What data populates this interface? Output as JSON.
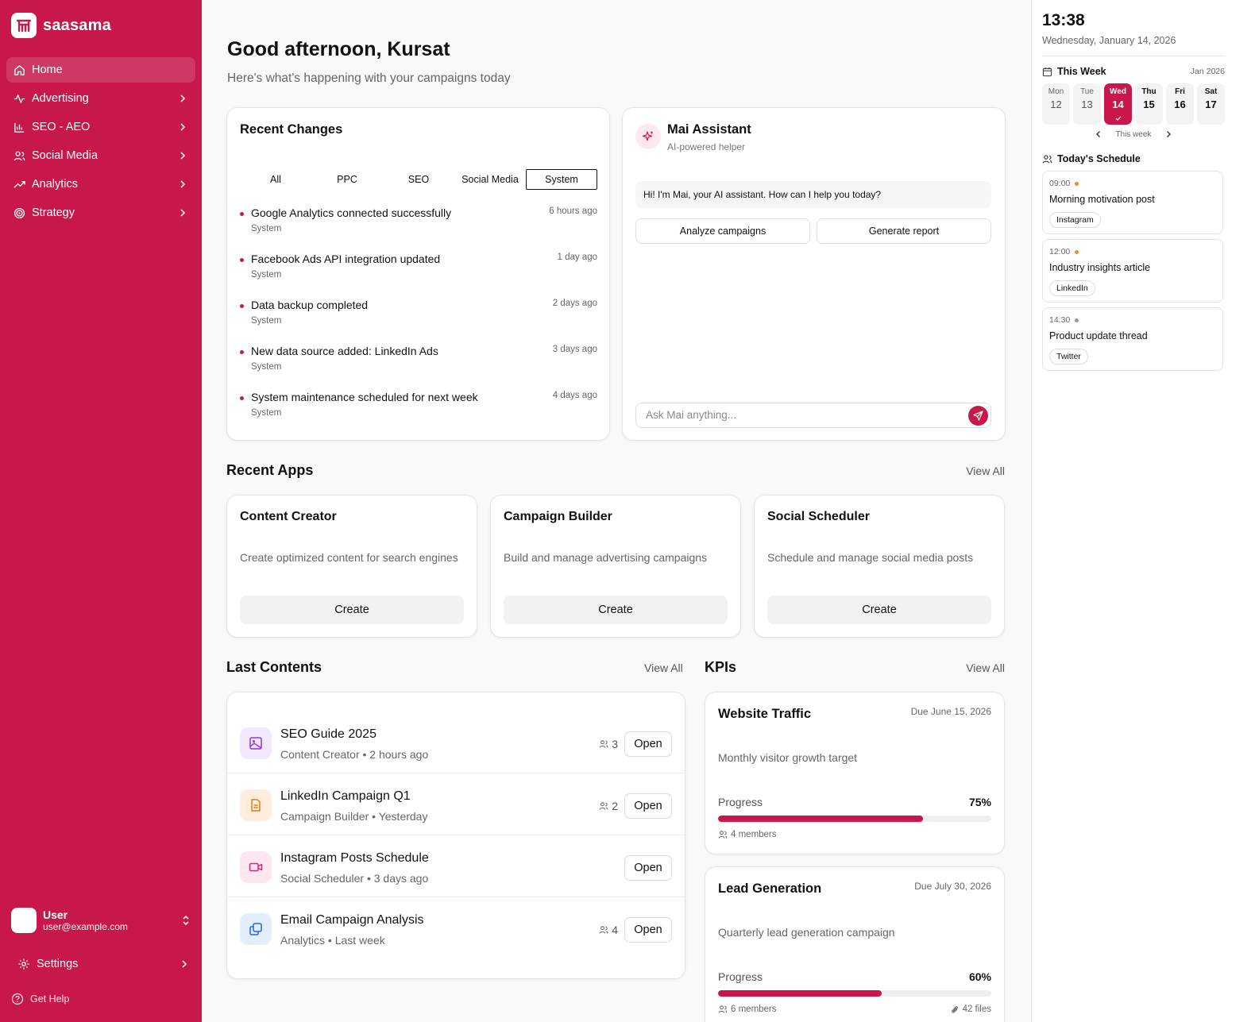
{
  "app": {
    "brand": "saasama"
  },
  "sidebar": {
    "items": [
      {
        "label": "Home",
        "icon": "home-icon"
      },
      {
        "label": "Advertising",
        "icon": "activity-icon"
      },
      {
        "label": "SEO - AEO",
        "icon": "bar-chart-icon"
      },
      {
        "label": "Social Media",
        "icon": "users-icon"
      },
      {
        "label": "Analytics",
        "icon": "trend-icon"
      },
      {
        "label": "Strategy",
        "icon": "target-icon"
      }
    ],
    "user": {
      "name": "User",
      "email": "user@example.com"
    },
    "settings_label": "Settings",
    "help_label": "Get Help"
  },
  "header": {
    "greeting": "Good afternoon, Kursat",
    "subtitle": "Here's what's happening with your campaigns today"
  },
  "recent_changes": {
    "title": "Recent Changes",
    "tabs": [
      "All",
      "PPC",
      "SEO",
      "Social Media",
      "System"
    ],
    "active_tab": "System",
    "items": [
      {
        "title": "Google Analytics connected successfully",
        "category": "System",
        "time": "6 hours ago"
      },
      {
        "title": "Facebook Ads API integration updated",
        "category": "System",
        "time": "1 day ago"
      },
      {
        "title": "Data backup completed",
        "category": "System",
        "time": "2 days ago"
      },
      {
        "title": "New data source added: LinkedIn Ads",
        "category": "System",
        "time": "3 days ago"
      },
      {
        "title": "System maintenance scheduled for next week",
        "category": "System",
        "time": "4 days ago"
      }
    ]
  },
  "assistant": {
    "title": "Mai Assistant",
    "subtitle": "AI-powered helper",
    "message": "Hi! I'm Mai, your AI assistant. How can I help you today?",
    "actions": [
      "Analyze campaigns",
      "Generate report"
    ],
    "input_placeholder": "Ask Mai anything..."
  },
  "recent_apps": {
    "title": "Recent Apps",
    "view_all": "View All",
    "apps": [
      {
        "title": "Content Creator",
        "description": "Create optimized content for search engines",
        "button": "Create"
      },
      {
        "title": "Campaign Builder",
        "description": "Build and manage advertising campaigns",
        "button": "Create"
      },
      {
        "title": "Social Scheduler",
        "description": "Schedule and manage social media posts",
        "button": "Create"
      }
    ]
  },
  "last_contents": {
    "title": "Last Contents",
    "view_all": "View All",
    "items": [
      {
        "title": "SEO Guide 2025",
        "meta": "Content Creator • 2 hours ago",
        "members": "3",
        "button": "Open",
        "icon": "image-icon",
        "color": "#9333ea"
      },
      {
        "title": "LinkedIn Campaign Q1",
        "meta": "Campaign Builder • Yesterday",
        "members": "2",
        "button": "Open",
        "icon": "document-icon",
        "color": "#ea7a1a"
      },
      {
        "title": "Instagram Posts Schedule",
        "meta": "Social Scheduler • 3 days ago",
        "members": "",
        "button": "Open",
        "icon": "video-icon",
        "color": "#db2777"
      },
      {
        "title": "Email Campaign Analysis",
        "meta": "Analytics • Last week",
        "members": "4",
        "button": "Open",
        "icon": "files-icon",
        "color": "#2563eb"
      }
    ]
  },
  "kpis": {
    "title": "KPIs",
    "view_all": "View All",
    "items": [
      {
        "title": "Website Traffic",
        "due": "Due June 15, 2026",
        "description": "Monthly visitor growth target",
        "progress_label": "Progress",
        "progress": "75%",
        "progress_value": 75,
        "members": "4 members",
        "files": ""
      },
      {
        "title": "Lead Generation",
        "due": "Due July 30, 2026",
        "description": "Quarterly lead generation campaign",
        "progress_label": "Progress",
        "progress": "60%",
        "progress_value": 60,
        "members": "6 members",
        "files": "42 files"
      }
    ]
  },
  "right_panel": {
    "time": "13:38",
    "date": "Wednesday, January 14, 2026",
    "week_title": "This Week",
    "month": "Jan 2026",
    "days": [
      {
        "name": "Mon",
        "num": "12"
      },
      {
        "name": "Tue",
        "num": "13"
      },
      {
        "name": "Wed",
        "num": "14"
      },
      {
        "name": "Thu",
        "num": "15"
      },
      {
        "name": "Fri",
        "num": "16"
      },
      {
        "name": "Sat",
        "num": "17"
      }
    ],
    "week_nav": "This week",
    "schedule_title": "Today's Schedule",
    "schedule": [
      {
        "time": "09:00",
        "title": "Morning motivation post",
        "platform": "Instagram",
        "dot": "#f08a24"
      },
      {
        "time": "12:00",
        "title": "Industry insights article",
        "platform": "LinkedIn",
        "dot": "#f08a24"
      },
      {
        "time": "14:30",
        "title": "Product update thread",
        "platform": "Twitter",
        "dot": "#999999"
      }
    ]
  },
  "colors": {
    "brand": "#c8184b"
  }
}
